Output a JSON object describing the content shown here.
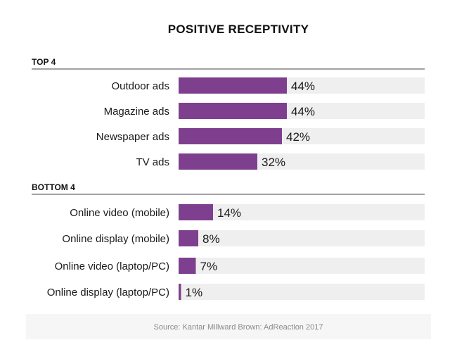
{
  "chart_data": {
    "type": "bar",
    "orientation": "horizontal",
    "title": "POSITIVE RECEPTIVITY",
    "xlim": [
      0,
      100
    ],
    "value_suffix": "%",
    "groups": [
      {
        "label": "TOP 4",
        "categories": [
          "Outdoor ads",
          "Magazine ads",
          "Newspaper ads",
          "TV ads"
        ],
        "values": [
          44,
          44,
          42,
          32
        ]
      },
      {
        "label": "BOTTOM 4",
        "categories": [
          "Online video (mobile)",
          "Online display (mobile)",
          "Online video (laptop/PC)",
          "Online display (laptop/PC)"
        ],
        "values": [
          14,
          8,
          7,
          1
        ]
      }
    ],
    "source": "Source: Kantar Millward Brown: AdReaction 2017",
    "colors": {
      "bar": "#7f3f8f",
      "track": "#efefef",
      "rule": "#444444"
    }
  }
}
